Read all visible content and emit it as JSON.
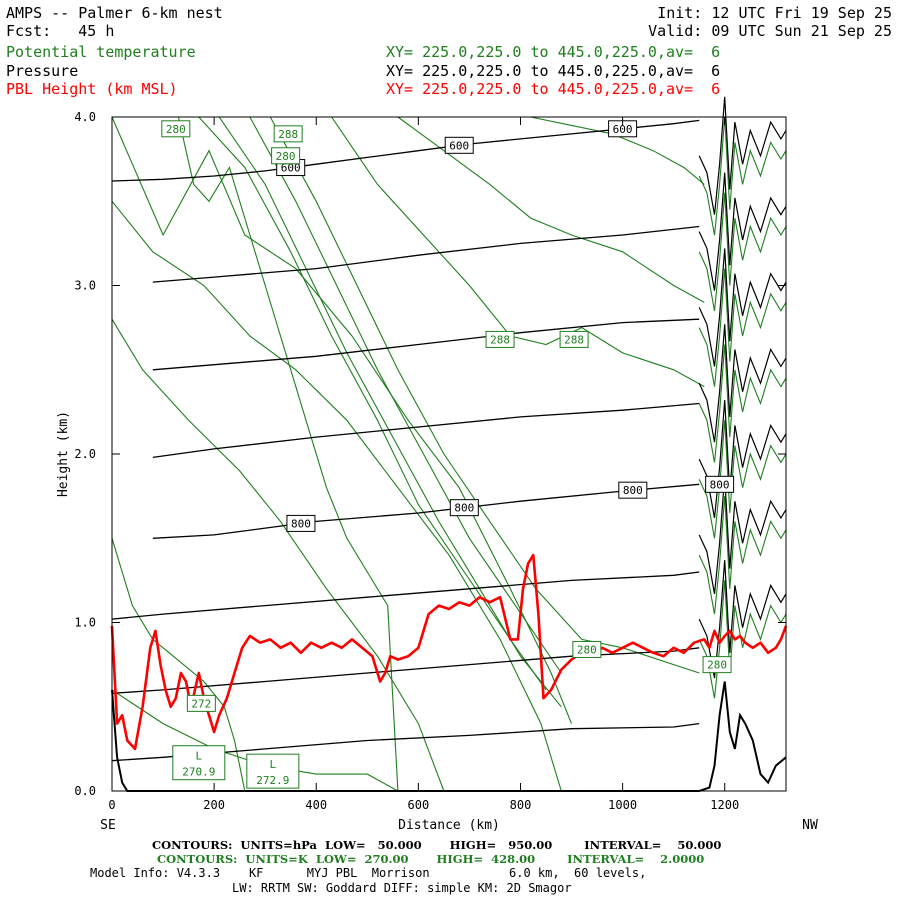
{
  "header": {
    "title": "AMPS -- Palmer 6-km nest",
    "init": "Init: 12 UTC Fri 19 Sep 25",
    "fcst": "Fcst:   45 h",
    "valid": "Valid: 09 UTC Sun 21 Sep 25",
    "fields": [
      {
        "name": "Potential temperature",
        "xy": "XY= 225.0,225.0 to 445.0,225.0,av=  6",
        "color": "#1f7f1f"
      },
      {
        "name": "Pressure",
        "xy": "XY= 225.0,225.0 to 445.0,225.0,av=  6",
        "color": "#000000"
      },
      {
        "name": "PBL Height (km MSL)",
        "xy": "XY= 225.0,225.0 to 445.0,225.0,av=  6",
        "color": "#ff0000"
      }
    ]
  },
  "footer": {
    "line1": "CONTOURS:  UNITS=hPa  LOW=   50.000       HIGH=   950.00        INTERVAL=    50.000",
    "line2": "CONTOURS:  UNITS=K  LOW=  270.00       HIGH=  428.00        INTERVAL=    2.0000",
    "line3": "Model Info: V4.3.3    KF      MYJ PBL  Morrison           6.0 km,  60 levels,",
    "line4": "LW: RRTM SW: Goddard DIFF: simple KM: 2D Smagor"
  },
  "chart_data": {
    "type": "line",
    "xlabel": "Distance (km)",
    "ylabel": "Height (km)",
    "xlim": [
      0,
      1320
    ],
    "ylim": [
      0,
      4
    ],
    "x_ticks": [
      0,
      200,
      400,
      600,
      800,
      1000,
      1200
    ],
    "y_ticks": [
      "0.0",
      "1.0",
      "2.0",
      "3.0",
      "4.0"
    ],
    "x_end_labels": {
      "left": "SE",
      "right": "NW"
    },
    "colors": {
      "theta": "#1f7f1f",
      "pressure": "#000000",
      "pbl": "#ff0000"
    },
    "pbl_height": {
      "x": [
        0,
        10,
        20,
        30,
        45,
        60,
        75,
        85,
        95,
        105,
        115,
        125,
        135,
        145,
        155,
        170,
        180,
        190,
        200,
        210,
        225,
        240,
        255,
        270,
        290,
        310,
        330,
        350,
        370,
        390,
        410,
        430,
        450,
        470,
        490,
        510,
        525,
        535,
        545,
        560,
        580,
        600,
        620,
        640,
        660,
        680,
        700,
        720,
        740,
        760,
        780,
        795,
        805,
        815,
        825,
        835,
        845,
        860,
        880,
        900,
        920,
        940,
        960,
        980,
        1000,
        1020,
        1040,
        1060,
        1080,
        1100,
        1120,
        1140,
        1160,
        1170,
        1180,
        1190,
        1200,
        1210,
        1220,
        1230,
        1240,
        1255,
        1270,
        1285,
        1300,
        1310,
        1320
      ],
      "y": [
        0.98,
        0.4,
        0.45,
        0.3,
        0.25,
        0.5,
        0.85,
        0.95,
        0.75,
        0.6,
        0.5,
        0.55,
        0.7,
        0.65,
        0.5,
        0.7,
        0.55,
        0.45,
        0.35,
        0.45,
        0.55,
        0.7,
        0.85,
        0.92,
        0.88,
        0.9,
        0.85,
        0.88,
        0.82,
        0.88,
        0.85,
        0.88,
        0.85,
        0.9,
        0.85,
        0.8,
        0.65,
        0.7,
        0.8,
        0.78,
        0.8,
        0.85,
        1.05,
        1.1,
        1.08,
        1.12,
        1.1,
        1.15,
        1.12,
        1.15,
        0.9,
        0.9,
        1.2,
        1.35,
        1.4,
        1.05,
        0.55,
        0.6,
        0.72,
        0.78,
        0.82,
        0.8,
        0.85,
        0.82,
        0.85,
        0.88,
        0.85,
        0.82,
        0.8,
        0.85,
        0.82,
        0.88,
        0.9,
        0.85,
        0.95,
        0.88,
        0.92,
        0.95,
        0.9,
        0.92,
        0.88,
        0.85,
        0.88,
        0.82,
        0.85,
        0.9,
        0.98
      ]
    },
    "pressure_contours": [
      {
        "label": "600",
        "x": [
          0,
          100,
          200,
          300,
          400,
          500,
          600,
          700,
          800,
          900,
          1000,
          1100,
          1150
        ],
        "y": [
          3.62,
          3.63,
          3.65,
          3.68,
          3.72,
          3.76,
          3.8,
          3.84,
          3.87,
          3.9,
          3.93,
          3.96,
          3.98
        ],
        "labels_at": [
          {
            "x": 350,
            "text": "600"
          },
          {
            "x": 680,
            "text": "600"
          },
          {
            "x": 1000,
            "text": "600"
          }
        ]
      },
      {
        "label": "",
        "x": [
          80,
          200,
          400,
          600,
          800,
          1000,
          1150
        ],
        "y": [
          3.02,
          3.05,
          3.1,
          3.18,
          3.25,
          3.3,
          3.35
        ]
      },
      {
        "label": "",
        "x": [
          80,
          200,
          400,
          600,
          800,
          1000,
          1150
        ],
        "y": [
          2.5,
          2.53,
          2.58,
          2.65,
          2.72,
          2.78,
          2.8
        ]
      },
      {
        "label": "",
        "x": [
          80,
          200,
          400,
          600,
          800,
          1000,
          1150
        ],
        "y": [
          1.98,
          2.03,
          2.1,
          2.16,
          2.22,
          2.26,
          2.3
        ]
      },
      {
        "label": "800",
        "x": [
          80,
          200,
          400,
          600,
          800,
          1000,
          1150
        ],
        "y": [
          1.5,
          1.52,
          1.6,
          1.65,
          1.72,
          1.78,
          1.82
        ],
        "labels_at": [
          {
            "x": 370,
            "text": "800"
          },
          {
            "x": 690,
            "text": "800"
          },
          {
            "x": 1020,
            "text": "800"
          },
          {
            "x": 1190,
            "text": "800"
          }
        ]
      },
      {
        "label": "",
        "x": [
          0,
          100,
          300,
          500,
          700,
          900,
          1100,
          1150
        ],
        "y": [
          1.02,
          1.05,
          1.1,
          1.15,
          1.2,
          1.25,
          1.28,
          1.3
        ]
      },
      {
        "label": "",
        "x": [
          0,
          100,
          300,
          500,
          700,
          900,
          1100,
          1150
        ],
        "y": [
          0.58,
          0.6,
          0.65,
          0.7,
          0.75,
          0.8,
          0.83,
          0.85
        ]
      },
      {
        "label": "",
        "x": [
          0,
          100,
          300,
          500,
          700,
          900,
          1100,
          1150
        ],
        "y": [
          0.18,
          0.2,
          0.25,
          0.3,
          0.33,
          0.37,
          0.38,
          0.4
        ]
      }
    ],
    "theta_labels": [
      {
        "x": 125,
        "y": 3.93,
        "text": "280"
      },
      {
        "x": 345,
        "y": 3.9,
        "text": "288"
      },
      {
        "x": 340,
        "y": 3.77,
        "text": "280"
      },
      {
        "x": 760,
        "y": 2.68,
        "text": "288"
      },
      {
        "x": 905,
        "y": 2.68,
        "text": "288"
      },
      {
        "x": 175,
        "y": 0.52,
        "text": "272"
      },
      {
        "x": 930,
        "y": 0.84,
        "text": "280"
      },
      {
        "x": 1185,
        "y": 0.75,
        "text": "280"
      }
    ],
    "lows": [
      {
        "x": 170,
        "y": 0.15,
        "text": "L",
        "value": "270.9"
      },
      {
        "x": 315,
        "y": 0.1,
        "text": "L",
        "value": "272.9"
      }
    ],
    "terrain": {
      "x": [
        0,
        10,
        20,
        30,
        1100,
        1150,
        1170,
        1180,
        1190,
        1200,
        1210,
        1220,
        1230,
        1240,
        1255,
        1270,
        1285,
        1300,
        1320
      ],
      "y": [
        0.6,
        0.2,
        0.05,
        0,
        0,
        0,
        0.02,
        0.15,
        0.45,
        0.65,
        0.35,
        0.25,
        0.45,
        0.4,
        0.3,
        0.1,
        0.05,
        0.15,
        0.2
      ]
    }
  }
}
